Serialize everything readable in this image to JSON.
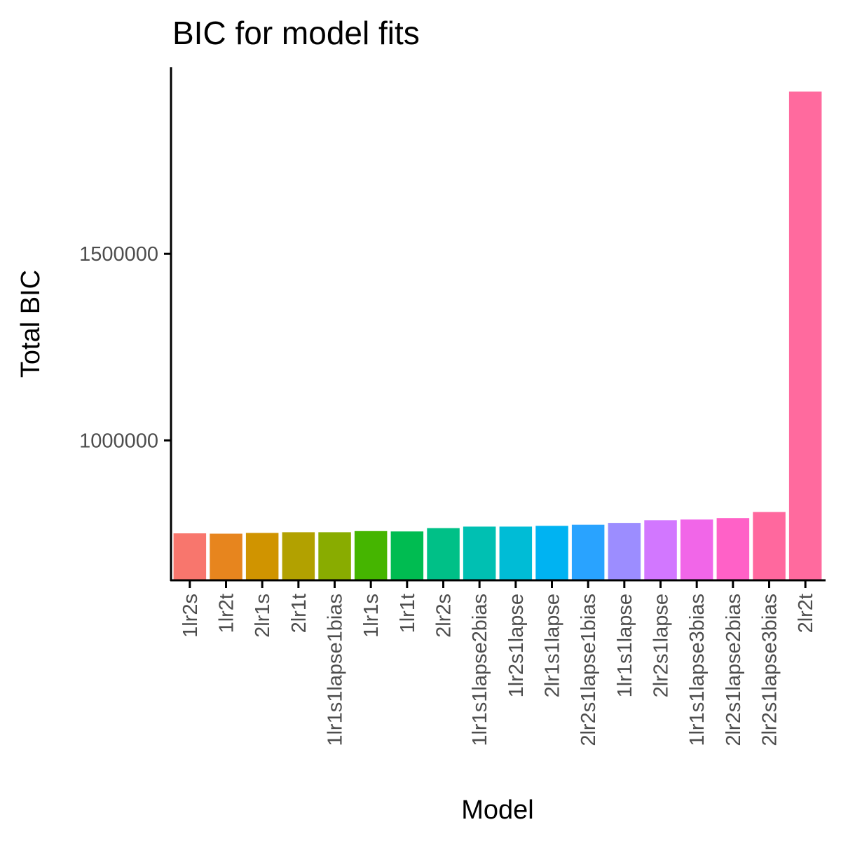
{
  "chart_data": {
    "type": "bar",
    "title": "BIC for model fits",
    "xlabel": "Model",
    "ylabel": "Total BIC",
    "categories": [
      "1lr2s",
      "1lr2t",
      "2lr1s",
      "2lr1t",
      "1lr1s1lapse1bias",
      "1lr1s",
      "1lr1t",
      "2lr2s",
      "1lr1s1lapse2bias",
      "1lr2s1lapse",
      "2lr1s1lapse",
      "2lr2s1lapse1bias",
      "1lr1s1lapse",
      "2lr2s1lapse",
      "1lr1s1lapse3bias",
      "2lr2s1lapse2bias",
      "2lr2s1lapse3bias",
      "2lr2t"
    ],
    "values": [
      751000,
      750000,
      752000,
      754000,
      754000,
      757000,
      756000,
      765000,
      769000,
      769000,
      771000,
      774000,
      779000,
      786000,
      788000,
      792000,
      808000,
      1935000
    ],
    "colors": [
      "#F8766D",
      "#E7851E",
      "#D09400",
      "#B2A100",
      "#89AC00",
      "#45B500",
      "#00BC51",
      "#00C087",
      "#00C0B2",
      "#00BCD6",
      "#00B3F2",
      "#29A3FF",
      "#9C8DFF",
      "#D277FF",
      "#F166E8",
      "#FF61C7",
      "#FF689E"
    ],
    "last_bar_color": "#FF6A9E",
    "y_ticks": [
      1000000,
      1500000
    ],
    "ylim": [
      627000,
      2000000
    ],
    "grid": false,
    "legend": "none"
  }
}
